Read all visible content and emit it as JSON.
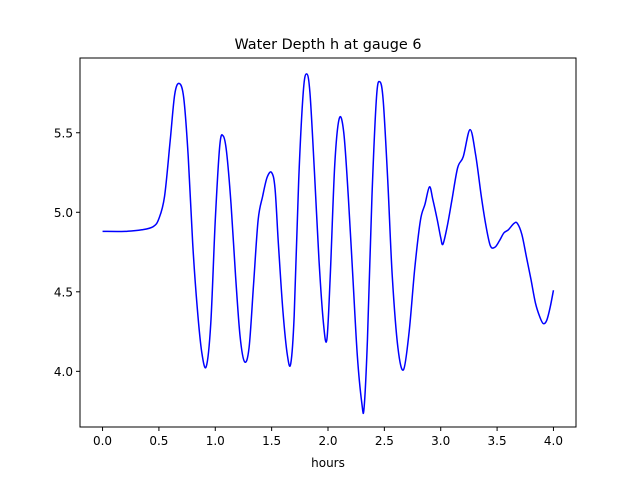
{
  "chart_data": {
    "type": "line",
    "title": "Water Depth h at gauge 6",
    "xlabel": "hours",
    "ylabel": "",
    "xlim": [
      -0.2,
      4.2
    ],
    "ylim": [
      3.65,
      5.97
    ],
    "xticks": [
      0.0,
      0.5,
      1.0,
      1.5,
      2.0,
      2.5,
      3.0,
      3.5,
      4.0
    ],
    "xtick_labels": [
      "0.0",
      "0.5",
      "1.0",
      "1.5",
      "2.0",
      "2.5",
      "3.0",
      "3.5",
      "4.0"
    ],
    "yticks": [
      4.0,
      4.5,
      5.0,
      5.5
    ],
    "ytick_labels": [
      "4.0",
      "4.5",
      "5.0",
      "5.5"
    ],
    "grid": false,
    "legend": "none",
    "series": [
      {
        "color": "#0000ff",
        "points": [
          [
            0.0,
            4.88
          ],
          [
            0.2,
            4.88
          ],
          [
            0.35,
            4.89
          ],
          [
            0.45,
            4.91
          ],
          [
            0.5,
            4.96
          ],
          [
            0.55,
            5.1
          ],
          [
            0.6,
            5.45
          ],
          [
            0.64,
            5.74
          ],
          [
            0.68,
            5.81
          ],
          [
            0.72,
            5.72
          ],
          [
            0.76,
            5.35
          ],
          [
            0.8,
            4.8
          ],
          [
            0.84,
            4.4
          ],
          [
            0.88,
            4.12
          ],
          [
            0.92,
            4.03
          ],
          [
            0.96,
            4.3
          ],
          [
            1.0,
            4.95
          ],
          [
            1.04,
            5.42
          ],
          [
            1.07,
            5.48
          ],
          [
            1.1,
            5.38
          ],
          [
            1.14,
            5.05
          ],
          [
            1.18,
            4.6
          ],
          [
            1.22,
            4.22
          ],
          [
            1.26,
            4.06
          ],
          [
            1.3,
            4.15
          ],
          [
            1.34,
            4.55
          ],
          [
            1.38,
            4.95
          ],
          [
            1.42,
            5.1
          ],
          [
            1.46,
            5.22
          ],
          [
            1.5,
            5.25
          ],
          [
            1.53,
            5.15
          ],
          [
            1.56,
            4.8
          ],
          [
            1.6,
            4.38
          ],
          [
            1.64,
            4.1
          ],
          [
            1.67,
            4.05
          ],
          [
            1.7,
            4.35
          ],
          [
            1.74,
            5.2
          ],
          [
            1.78,
            5.75
          ],
          [
            1.81,
            5.87
          ],
          [
            1.84,
            5.75
          ],
          [
            1.88,
            5.25
          ],
          [
            1.92,
            4.7
          ],
          [
            1.96,
            4.3
          ],
          [
            1.99,
            4.2
          ],
          [
            2.02,
            4.6
          ],
          [
            2.06,
            5.3
          ],
          [
            2.1,
            5.59
          ],
          [
            2.14,
            5.5
          ],
          [
            2.18,
            5.1
          ],
          [
            2.22,
            4.6
          ],
          [
            2.26,
            4.1
          ],
          [
            2.3,
            3.8
          ],
          [
            2.32,
            3.77
          ],
          [
            2.35,
            4.2
          ],
          [
            2.39,
            5.1
          ],
          [
            2.43,
            5.72
          ],
          [
            2.46,
            5.82
          ],
          [
            2.49,
            5.7
          ],
          [
            2.53,
            5.2
          ],
          [
            2.57,
            4.6
          ],
          [
            2.62,
            4.15
          ],
          [
            2.67,
            4.01
          ],
          [
            2.72,
            4.25
          ],
          [
            2.77,
            4.65
          ],
          [
            2.82,
            4.95
          ],
          [
            2.86,
            5.05
          ],
          [
            2.9,
            5.16
          ],
          [
            2.93,
            5.08
          ],
          [
            2.97,
            4.95
          ],
          [
            3.0,
            4.84
          ],
          [
            3.02,
            4.8
          ],
          [
            3.06,
            4.92
          ],
          [
            3.1,
            5.08
          ],
          [
            3.15,
            5.28
          ],
          [
            3.2,
            5.35
          ],
          [
            3.26,
            5.52
          ],
          [
            3.31,
            5.36
          ],
          [
            3.36,
            5.1
          ],
          [
            3.4,
            4.92
          ],
          [
            3.44,
            4.79
          ],
          [
            3.48,
            4.78
          ],
          [
            3.52,
            4.82
          ],
          [
            3.56,
            4.87
          ],
          [
            3.6,
            4.89
          ],
          [
            3.65,
            4.93
          ],
          [
            3.68,
            4.93
          ],
          [
            3.72,
            4.86
          ],
          [
            3.76,
            4.72
          ],
          [
            3.8,
            4.58
          ],
          [
            3.84,
            4.43
          ],
          [
            3.88,
            4.34
          ],
          [
            3.91,
            4.3
          ],
          [
            3.94,
            4.32
          ],
          [
            3.97,
            4.4
          ],
          [
            4.0,
            4.51
          ]
        ]
      }
    ]
  }
}
